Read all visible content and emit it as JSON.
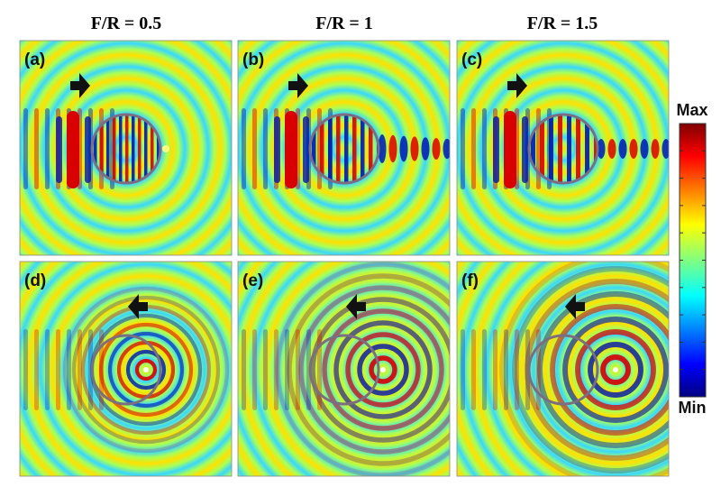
{
  "columns": [
    "F/R = 0.5",
    "F/R = 1",
    "F/R = 1.5"
  ],
  "panels": [
    "(a)",
    "(b)",
    "(c)",
    "(d)",
    "(e)",
    "(f)"
  ],
  "colorbar": {
    "max": "Max",
    "min": "Min"
  }
}
